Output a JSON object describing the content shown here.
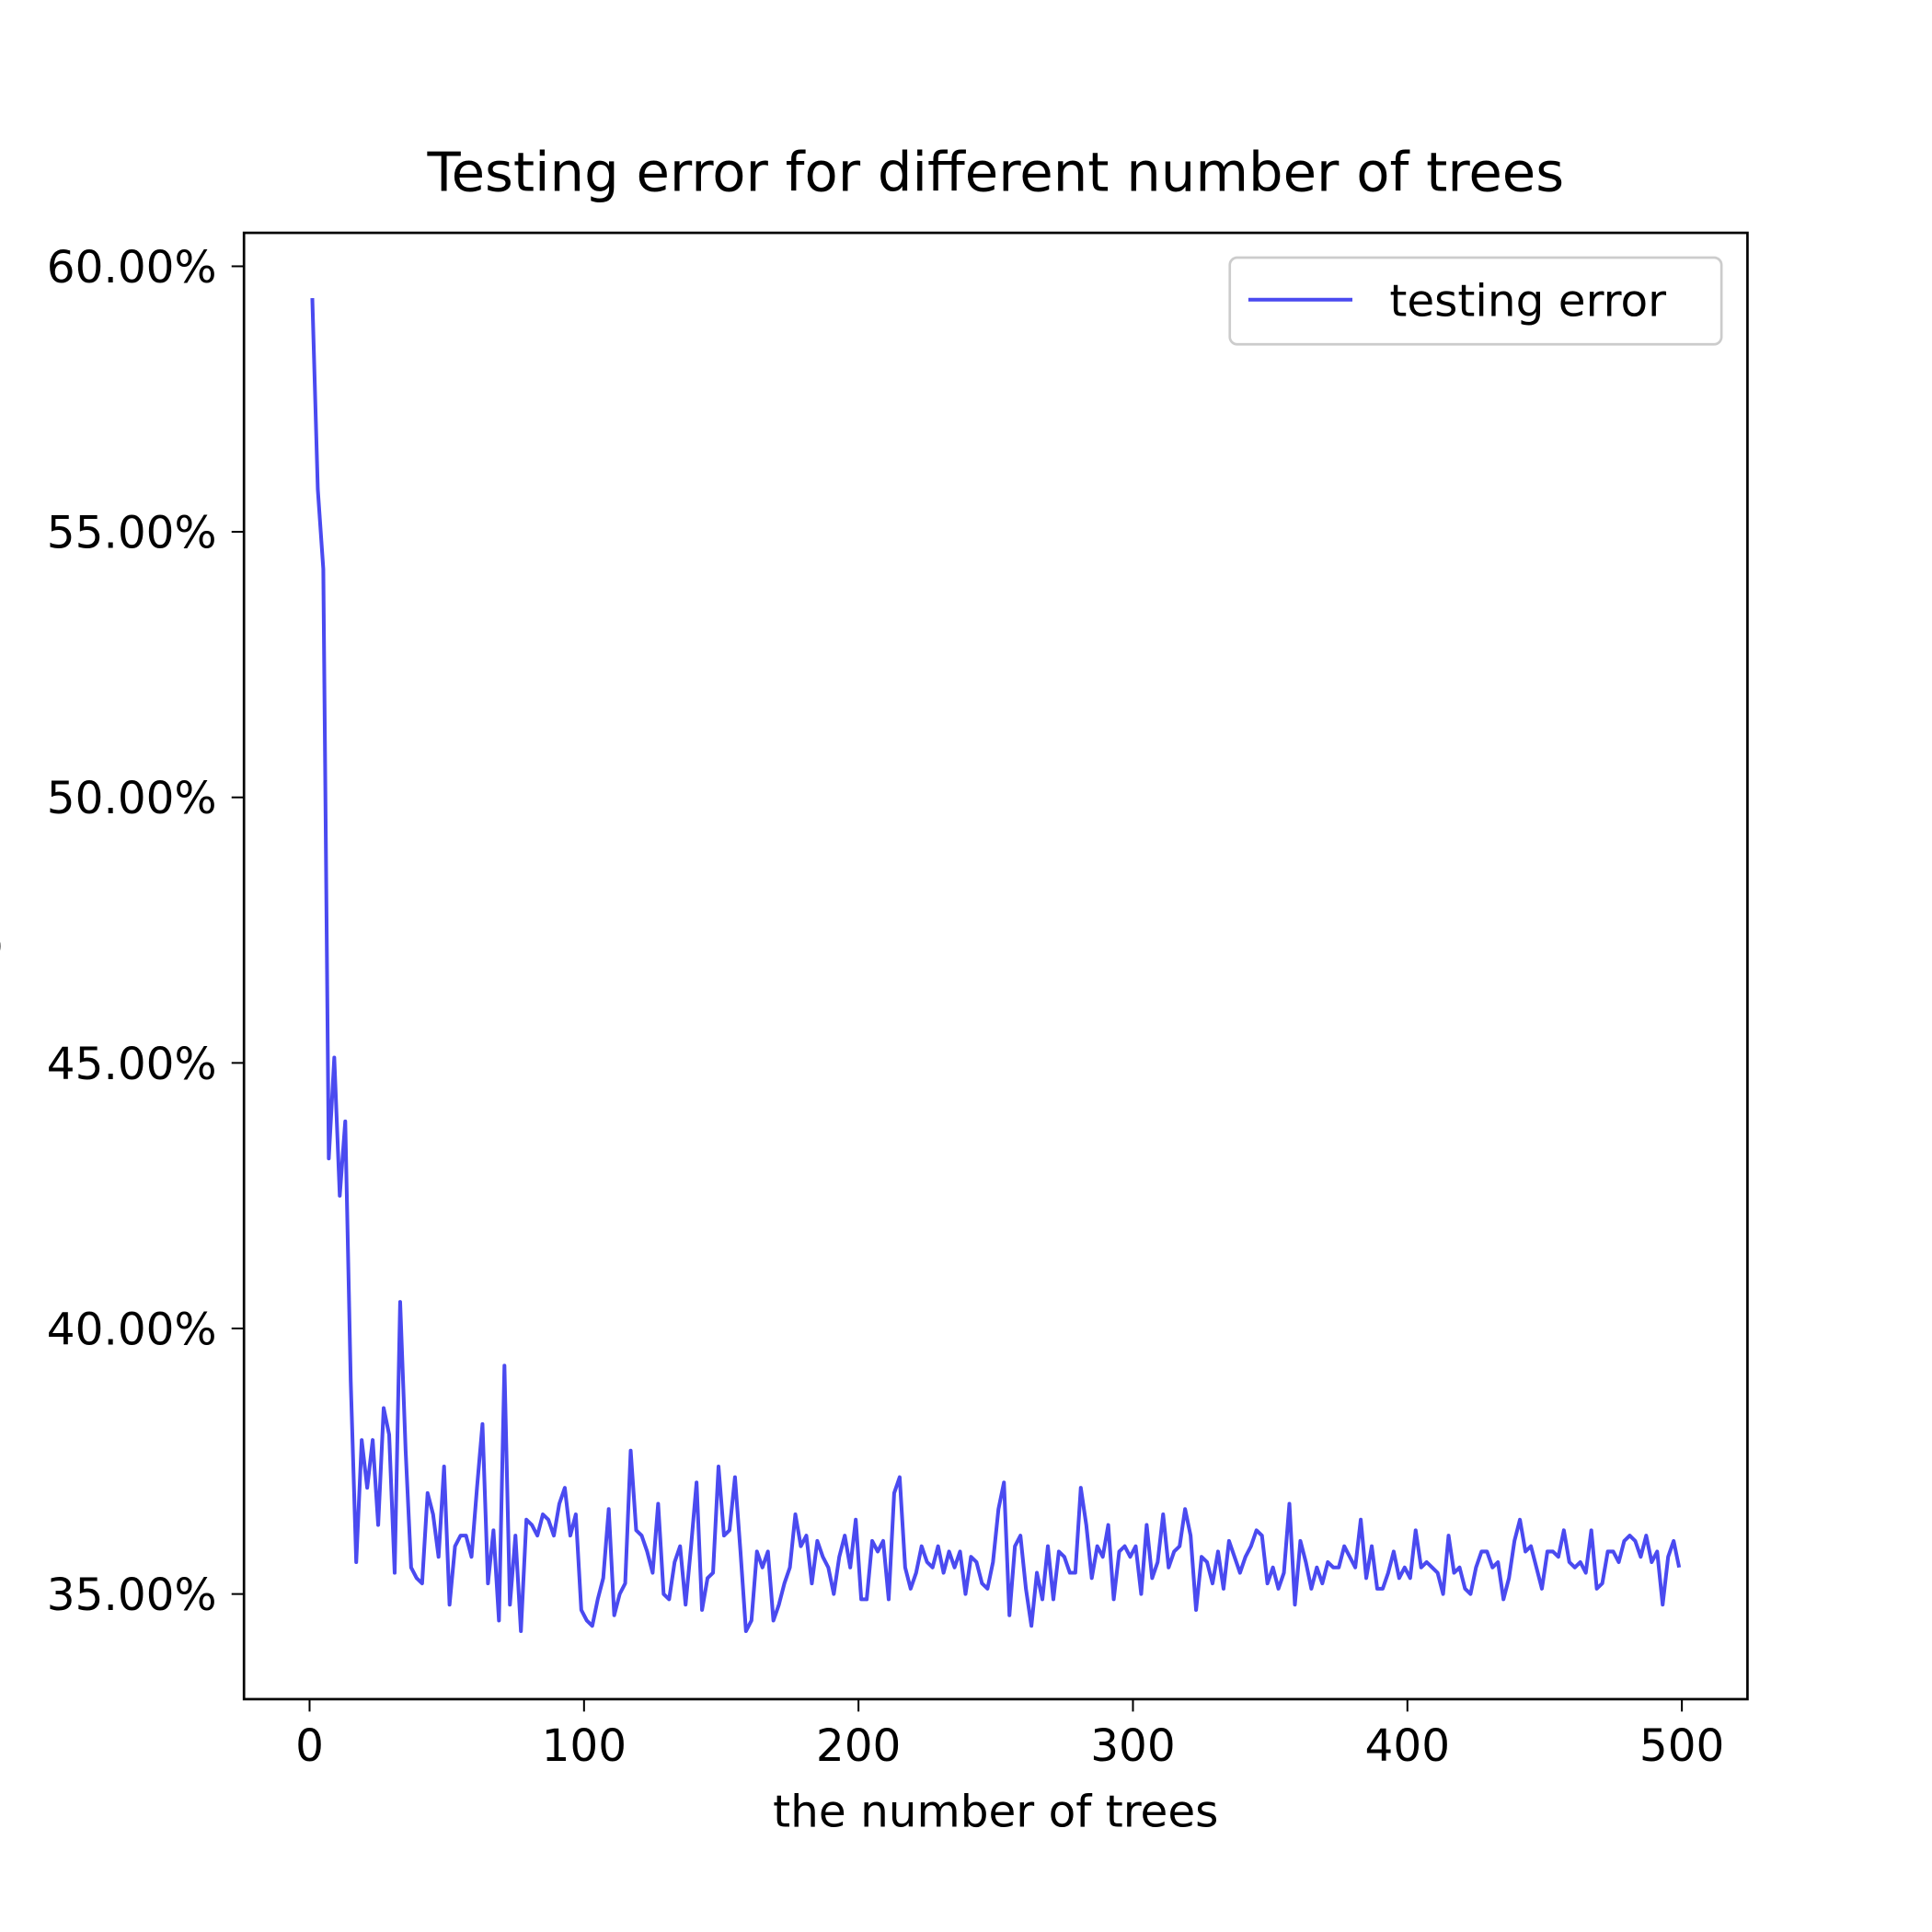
{
  "chart_data": {
    "type": "line",
    "title": "Testing error for different number of trees",
    "xlabel": "the number of trees",
    "ylabel": "RMSE",
    "x": [
      1,
      3,
      5,
      7,
      9,
      11,
      13,
      15,
      17,
      19,
      21,
      23,
      25,
      27,
      29,
      31,
      33,
      35,
      37,
      39,
      41,
      43,
      45,
      47,
      49,
      51,
      53,
      55,
      57,
      59,
      61,
      63,
      65,
      67,
      69,
      71,
      73,
      75,
      77,
      79,
      81,
      83,
      85,
      87,
      89,
      91,
      93,
      95,
      97,
      99,
      101,
      103,
      105,
      107,
      109,
      111,
      113,
      115,
      117,
      119,
      121,
      123,
      125,
      127,
      129,
      131,
      133,
      135,
      137,
      139,
      141,
      143,
      145,
      147,
      149,
      151,
      153,
      155,
      157,
      159,
      161,
      163,
      165,
      167,
      169,
      171,
      173,
      175,
      177,
      179,
      181,
      183,
      185,
      187,
      189,
      191,
      193,
      195,
      197,
      199,
      201,
      203,
      205,
      207,
      209,
      211,
      213,
      215,
      217,
      219,
      221,
      223,
      225,
      227,
      229,
      231,
      233,
      235,
      237,
      239,
      241,
      243,
      245,
      247,
      249,
      251,
      253,
      255,
      257,
      259,
      261,
      263,
      265,
      267,
      269,
      271,
      273,
      275,
      277,
      279,
      281,
      283,
      285,
      287,
      289,
      291,
      293,
      295,
      297,
      299,
      301,
      303,
      305,
      307,
      309,
      311,
      313,
      315,
      317,
      319,
      321,
      323,
      325,
      327,
      329,
      331,
      333,
      335,
      337,
      339,
      341,
      343,
      345,
      347,
      349,
      351,
      353,
      355,
      357,
      359,
      361,
      363,
      365,
      367,
      369,
      371,
      373,
      375,
      377,
      379,
      381,
      383,
      385,
      387,
      389,
      391,
      393,
      395,
      397,
      399,
      401,
      403,
      405,
      407,
      409,
      411,
      413,
      415,
      417,
      419,
      421,
      423,
      425,
      427,
      429,
      431,
      433,
      435,
      437,
      439,
      441,
      443,
      445,
      447,
      449,
      451,
      453,
      455,
      457,
      459,
      461,
      463,
      465,
      467,
      469,
      471,
      473,
      475,
      477,
      479,
      481,
      483,
      485,
      487,
      489,
      491,
      493,
      495,
      497,
      499
    ],
    "series": [
      {
        "name": "testing error",
        "color": "#4a4af0",
        "values": [
          59.4,
          55.8,
          54.3,
          43.2,
          45.1,
          42.5,
          43.9,
          39.0,
          35.6,
          37.9,
          37.0,
          37.9,
          36.3,
          38.5,
          38.0,
          35.4,
          40.5,
          37.7,
          35.5,
          35.3,
          35.2,
          36.9,
          36.5,
          35.7,
          37.4,
          34.8,
          35.9,
          36.1,
          36.1,
          35.7,
          37.0,
          38.2,
          35.2,
          36.2,
          34.5,
          39.3,
          34.8,
          36.1,
          34.3,
          36.4,
          36.3,
          36.1,
          36.5,
          36.4,
          36.1,
          36.7,
          37.0,
          36.1,
          36.5,
          34.7,
          34.5,
          34.4,
          34.9,
          35.3,
          36.6,
          34.6,
          35.0,
          35.2,
          37.7,
          36.2,
          36.1,
          35.8,
          35.4,
          36.7,
          35.0,
          34.9,
          35.6,
          35.9,
          34.8,
          35.9,
          37.1,
          34.7,
          35.3,
          35.4,
          37.4,
          36.1,
          36.2,
          37.2,
          35.8,
          34.3,
          34.5,
          35.8,
          35.5,
          35.8,
          34.5,
          34.8,
          35.2,
          35.5,
          36.5,
          35.9,
          36.1,
          35.2,
          36.0,
          35.7,
          35.5,
          35.0,
          35.7,
          36.1,
          35.5,
          36.4,
          34.9,
          34.9,
          36.0,
          35.8,
          36.0,
          34.9,
          36.9,
          37.2,
          35.5,
          35.1,
          35.4,
          35.9,
          35.6,
          35.5,
          35.9,
          35.4,
          35.8,
          35.5,
          35.8,
          35.0,
          35.7,
          35.6,
          35.2,
          35.1,
          35.6,
          36.6,
          37.1,
          34.6,
          35.9,
          36.1,
          35.1,
          34.4,
          35.4,
          34.9,
          35.9,
          34.9,
          35.8,
          35.7,
          35.4,
          35.4,
          37.0,
          36.3,
          35.3,
          35.9,
          35.7,
          36.3,
          34.9,
          35.8,
          35.9,
          35.7,
          35.9,
          35.0,
          36.3,
          35.3,
          35.6,
          36.5,
          35.5,
          35.8,
          35.9,
          36.6,
          36.1,
          34.7,
          35.7,
          35.6,
          35.2,
          35.8,
          35.1,
          36.0,
          35.7,
          35.4,
          35.7,
          35.9,
          36.2,
          36.1,
          35.2,
          35.5,
          35.1,
          35.4,
          36.7,
          34.8,
          36.0,
          35.6,
          35.1,
          35.5,
          35.2,
          35.6,
          35.5,
          35.5,
          35.9,
          35.7,
          35.5,
          36.4,
          35.3,
          35.9,
          35.1,
          35.1,
          35.4,
          35.8,
          35.3,
          35.5,
          35.3,
          36.2,
          35.5,
          35.6,
          35.5,
          35.4,
          35.0,
          36.1,
          35.4,
          35.5,
          35.1,
          35.0,
          35.5,
          35.8,
          35.8,
          35.5,
          35.6,
          34.9,
          35.3,
          36.0,
          36.4,
          35.8,
          35.9,
          35.5,
          35.1,
          35.8,
          35.8,
          35.7,
          36.2,
          35.6,
          35.5,
          35.6,
          35.4,
          36.2,
          35.1,
          35.2,
          35.8,
          35.8,
          35.6,
          36.0,
          36.1,
          36.0,
          35.7,
          36.1,
          35.6,
          35.8,
          34.8,
          35.7,
          36.0,
          35.5
        ]
      }
    ],
    "xlim": [
      -23.9,
      523.9
    ],
    "ylim": [
      33.02,
      60.63
    ],
    "xticks": [
      0,
      100,
      200,
      300,
      400,
      500
    ],
    "yticks": [
      {
        "value": 35,
        "label": "35.00%"
      },
      {
        "value": 40,
        "label": "40.00%"
      },
      {
        "value": 45,
        "label": "45.00%"
      },
      {
        "value": 50,
        "label": "50.00%"
      },
      {
        "value": 55,
        "label": "55.00%"
      },
      {
        "value": 60,
        "label": "60.00%"
      }
    ],
    "legend": "upper right"
  }
}
